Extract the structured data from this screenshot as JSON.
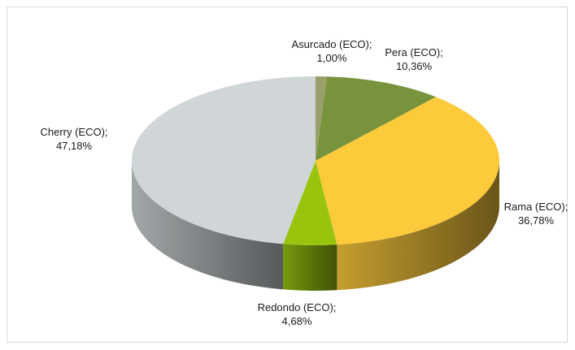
{
  "chart_data": {
    "type": "pie",
    "three_d": true,
    "legend": "none",
    "slices": [
      {
        "name": "Asurcado (ECO)",
        "value": 1.0,
        "display": "1,00%",
        "color": "#9aa06a",
        "label_text": "Asurcado (ECO);"
      },
      {
        "name": "Pera (ECO)",
        "value": 10.36,
        "display": "10,36%",
        "color": "#77933c",
        "label_text": "Pera (ECO);"
      },
      {
        "name": "Rama (ECO)",
        "value": 36.78,
        "display": "36,78%",
        "color": "#fcca3b",
        "label_text": "Rama (ECO);"
      },
      {
        "name": "Redondo (ECO)",
        "value": 4.68,
        "display": "4,68%",
        "color": "#99c40e",
        "label_text": "Redondo (ECO);"
      },
      {
        "name": "Cherry (ECO)",
        "value": 47.18,
        "display": "47,18%",
        "color": "#d0d6d8",
        "label_text": "Cherry (ECO);"
      }
    ]
  }
}
